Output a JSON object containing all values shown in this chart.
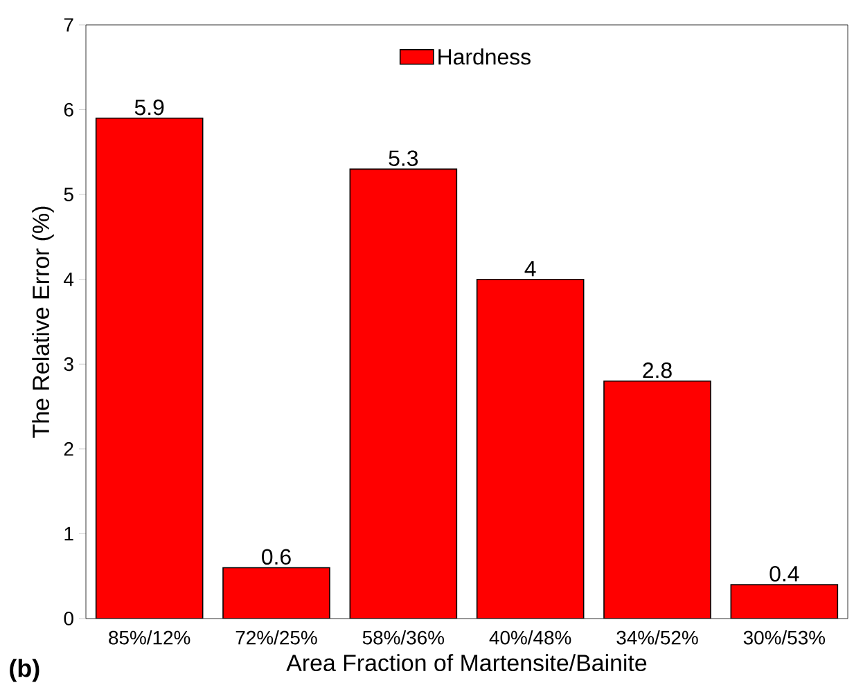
{
  "chart_data": {
    "type": "bar",
    "xlabel": "Area Fraction of Martensite/Bainite",
    "ylabel": "The Relative Error (%)",
    "categories": [
      "85%/12%",
      "72%/25%",
      "58%/36%",
      "40%/48%",
      "34%/52%",
      "30%/53%"
    ],
    "series": [
      {
        "name": "Hardness",
        "color": "#ff0000",
        "values": [
          5.9,
          0.6,
          5.3,
          4,
          2.8,
          0.4
        ]
      }
    ],
    "ylim": [
      0,
      7
    ],
    "yticks": [
      0,
      1,
      2,
      3,
      4,
      5,
      6,
      7
    ],
    "legend": "top",
    "data_labels": true,
    "grid": false,
    "annotations": [
      "(b)"
    ]
  }
}
